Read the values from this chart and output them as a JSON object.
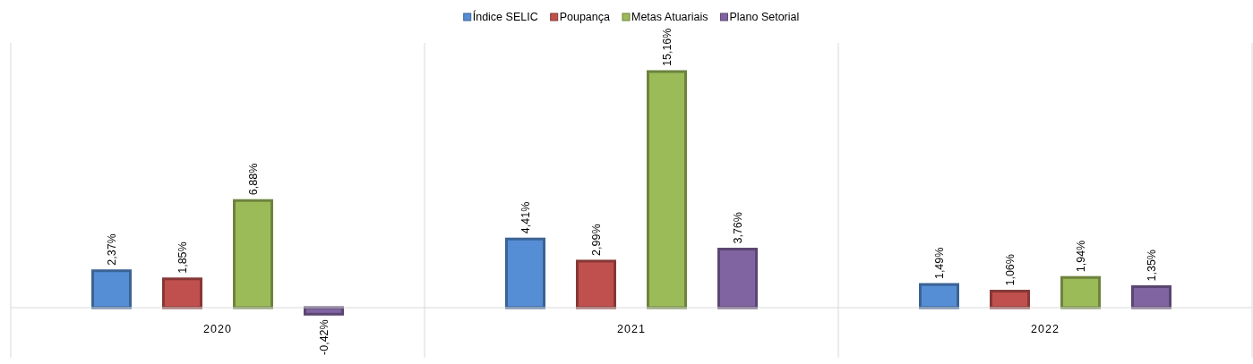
{
  "chart_data": {
    "type": "bar",
    "categories": [
      "2020",
      "2021",
      "2022"
    ],
    "series": [
      {
        "name": "Índice SELIC",
        "color": "#558ed5",
        "values": [
          2.37,
          4.41,
          1.49
        ],
        "value_labels": [
          "2,37%",
          "4,41%",
          "1,49%"
        ]
      },
      {
        "name": "Poupança",
        "color": "#c0504d",
        "values": [
          1.85,
          2.99,
          1.06
        ],
        "value_labels": [
          "1,85%",
          "2,99%",
          "1,06%"
        ]
      },
      {
        "name": "Metas Atuariais",
        "color": "#9bbb59",
        "values": [
          6.88,
          15.16,
          1.94
        ],
        "value_labels": [
          "6,88%",
          "15,16%",
          "1,94%"
        ]
      },
      {
        "name": "Plano Setorial",
        "color": "#8064a2",
        "values": [
          -0.42,
          3.76,
          1.35
        ],
        "value_labels": [
          "-0,42%",
          "3,76%",
          "1,35%"
        ]
      }
    ],
    "legend": "top"
  }
}
